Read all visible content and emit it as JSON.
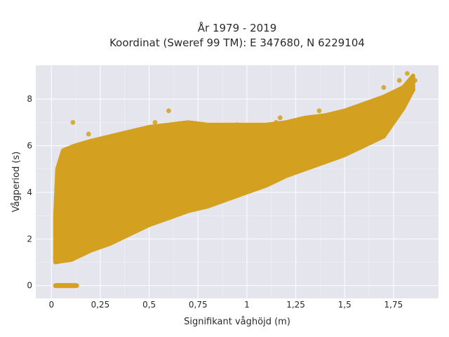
{
  "chart_data": {
    "type": "scatter",
    "title": "År 1979 - 2019",
    "subtitle": "Koordinat (Sweref 99 TM): E 347680, N 6229104",
    "xlabel": "Signifikant våghöjd (m)",
    "ylabel": "Vågperiod (s)",
    "xlim": [
      -0.08,
      1.98
    ],
    "ylim": [
      -0.55,
      9.45
    ],
    "x_ticks": [
      0,
      0.25,
      0.5,
      0.75,
      1.0,
      1.25,
      1.5,
      1.75
    ],
    "x_tick_labels": [
      "0",
      "0,25",
      "0,5",
      "0,75",
      "1",
      "1,25",
      "1,5",
      "1,75"
    ],
    "y_ticks": [
      0,
      2,
      4,
      6,
      8
    ],
    "y_tick_labels": [
      "0",
      "2",
      "4",
      "6",
      "8"
    ],
    "grid": true,
    "marker_color": "#D4A020",
    "background_color": "#E5E5EE",
    "series": [
      {
        "x": [
          0.02,
          0.04,
          0.06,
          0.08,
          0.1,
          0.12,
          0.03,
          0.05,
          0.07,
          0.09,
          0.11,
          0.13,
          0.02,
          0.05,
          0.1,
          0.15,
          0.2,
          0.25,
          0.3,
          0.35,
          0.4,
          0.45,
          0.5,
          0.55,
          0.6,
          0.65,
          0.7,
          0.75,
          0.8,
          0.85,
          0.9,
          0.95,
          1.0,
          1.05,
          1.1,
          1.15,
          1.2,
          1.25,
          1.3,
          1.35,
          1.4,
          1.45,
          1.5,
          1.55,
          1.6,
          1.65,
          1.7,
          1.75,
          1.8,
          1.85,
          0.05,
          0.1,
          0.2,
          0.3,
          0.4,
          0.5,
          0.6,
          0.7,
          0.8,
          0.9,
          1.0,
          1.1,
          1.2,
          1.3,
          1.4,
          1.5,
          1.6,
          1.7,
          1.8,
          0.1,
          0.3,
          0.5,
          0.7,
          0.9,
          1.1,
          1.3,
          1.5,
          1.7,
          0.15,
          0.35,
          0.55,
          0.75,
          0.95,
          1.15,
          1.35,
          1.55,
          1.75,
          0.11,
          0.19,
          0.53,
          0.6,
          1.17,
          1.37,
          1.62,
          1.7,
          1.78,
          1.82,
          1.86
        ],
        "y": [
          0,
          0,
          0,
          0,
          0,
          0,
          0,
          0,
          0,
          0,
          0,
          0,
          1.2,
          1.5,
          2.0,
          2.3,
          2.6,
          2.8,
          3.0,
          3.2,
          3.4,
          3.5,
          3.7,
          3.8,
          3.9,
          4.0,
          4.2,
          4.3,
          4.4,
          4.6,
          4.8,
          5.0,
          5.1,
          5.2,
          5.4,
          5.5,
          5.6,
          5.7,
          5.9,
          6.0,
          6.1,
          6.2,
          6.3,
          6.4,
          6.6,
          6.8,
          7.0,
          7.3,
          7.8,
          8.4,
          3.5,
          4.5,
          5.0,
          5.4,
          5.6,
          5.8,
          6.0,
          6.2,
          6.3,
          6.4,
          6.6,
          6.7,
          6.9,
          7.0,
          7.2,
          7.3,
          7.5,
          7.8,
          8.0,
          2.5,
          3.8,
          4.6,
          5.2,
          5.6,
          5.9,
          6.1,
          6.4,
          6.9,
          5.5,
          6.2,
          6.6,
          6.8,
          6.9,
          7.0,
          7.2,
          7.4,
          7.6,
          7.0,
          6.5,
          7.0,
          7.5,
          7.2,
          7.5,
          7.8,
          8.5,
          8.8,
          9.1,
          8.8
        ]
      }
    ]
  }
}
